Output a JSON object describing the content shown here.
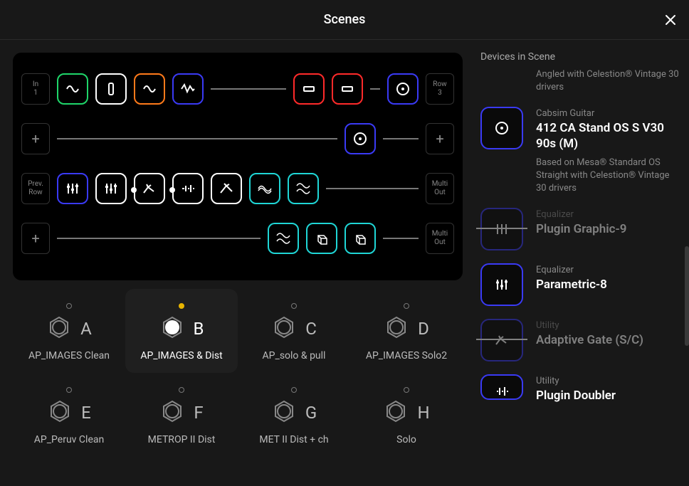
{
  "ui": {
    "title": "Scenes",
    "close_icon": "close",
    "devices_heading": "Devices in Scene"
  },
  "colors": {
    "bg": "#181818",
    "panel": "#000000",
    "text": "#ffffff",
    "muted": "#888888",
    "accent_blue": "#3a3af5",
    "accent_green": "#1fd66a",
    "accent_orange": "#ff7a1a",
    "accent_red": "#ff2a2a",
    "accent_teal": "#1fd6d6",
    "active_dot": "#e8b400"
  },
  "scenes": [
    {
      "letter": "A",
      "name": "AP_IMAGES Clean",
      "active": false
    },
    {
      "letter": "B",
      "name": "AP_IMAGES & Dist",
      "active": true
    },
    {
      "letter": "C",
      "name": "AP_solo & pull",
      "active": false
    },
    {
      "letter": "D",
      "name": "AP_IMAGES Solo2",
      "active": false
    },
    {
      "letter": "E",
      "name": "AP_Peruv Clean",
      "active": false
    },
    {
      "letter": "F",
      "name": "METROP II Dist",
      "active": false
    },
    {
      "letter": "G",
      "name": "MET II Dist + ch",
      "active": false
    },
    {
      "letter": "H",
      "name": "Solo",
      "active": false
    }
  ],
  "devices": [
    {
      "category": "",
      "name": "",
      "desc_prefix": "",
      "desc": "Angled with Celestion® Vintage 30 drivers",
      "icon": "cab",
      "bypassed": false,
      "partial_top": true
    },
    {
      "category": "Cabsim Guitar",
      "name": "412 CA Stand OS S V30 90s (M)",
      "desc": "Based on Mesa® Standard OS Straight with Celestion® Vintage 30 drivers",
      "icon": "cab",
      "bypassed": false
    },
    {
      "category": "Equalizer",
      "name": "Plugin Graphic-9",
      "desc": "",
      "icon": "eq-graphic",
      "bypassed": true
    },
    {
      "category": "Equalizer",
      "name": "Parametric-8",
      "desc": "",
      "icon": "eq-param",
      "bypassed": false
    },
    {
      "category": "Utility",
      "name": "Adaptive Gate (S/C)",
      "desc": "",
      "icon": "gate",
      "bypassed": true
    },
    {
      "category": "Utility",
      "name": "Plugin Doubler",
      "desc": "",
      "icon": "doubler",
      "bypassed": false,
      "partial_bottom": true
    }
  ],
  "preview": {
    "rows": [
      {
        "left_label": "In\n1",
        "right_label": "Row\n3",
        "blocks": [
          {
            "c": "green",
            "g": "noise"
          },
          {
            "c": "white",
            "g": "comp"
          },
          {
            "c": "orange",
            "g": "sine"
          },
          {
            "c": "blue",
            "g": "wave"
          },
          {
            "spacer": true
          },
          {
            "c": "red",
            "g": "amp"
          },
          {
            "c": "red",
            "g": "amp"
          },
          {
            "gap": true
          },
          {
            "c": "blue",
            "g": "cab"
          }
        ]
      },
      {
        "left_label": "+",
        "right_label": "+",
        "blocks": [
          {
            "spacer": true
          },
          {
            "c": "blue",
            "g": "cab"
          },
          {
            "spacer_short": true
          }
        ]
      },
      {
        "left_label": "Prev.\nRow",
        "right_label": "Multi\nOut",
        "blocks": [
          {
            "c": "blue",
            "g": "eq"
          },
          {
            "c": "white",
            "g": "eq"
          },
          {
            "c": "white",
            "g": "gate",
            "mini": true
          },
          {
            "c": "white",
            "g": "dbl",
            "mini": true
          },
          {
            "c": "white",
            "g": "gate2"
          },
          {
            "c": "teal",
            "g": "chorus"
          },
          {
            "c": "teal",
            "g": "mod"
          },
          {
            "spacer": true
          }
        ]
      },
      {
        "left_label": "+",
        "right_label": "Multi\nOut",
        "blocks": [
          {
            "spacer": true
          },
          {
            "c": "teal",
            "g": "mod"
          },
          {
            "c": "teal",
            "g": "cube"
          },
          {
            "c": "teal",
            "g": "cube"
          },
          {
            "spacer_short": true
          }
        ]
      }
    ]
  }
}
